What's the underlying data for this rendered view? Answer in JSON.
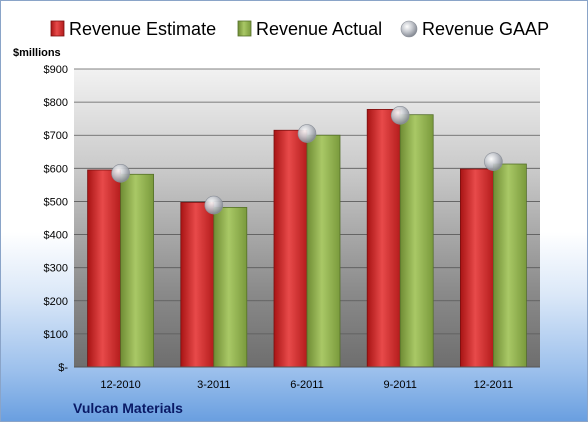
{
  "chart_data": {
    "type": "bar",
    "title": "",
    "unit_label": "$millions",
    "company": "Vulcan Materials",
    "categories": [
      "12-2010",
      "3-2011",
      "6-2011",
      "9-2011",
      "12-2011"
    ],
    "series": [
      {
        "name": "Revenue Estimate",
        "kind": "bar",
        "color": "#d42a2a",
        "values": [
          595,
          497,
          715,
          778,
          598
        ]
      },
      {
        "name": "Revenue Actual",
        "kind": "bar",
        "color": "#8fb04a",
        "values": [
          582,
          482,
          700,
          762,
          613
        ]
      },
      {
        "name": "Revenue GAAP",
        "kind": "marker",
        "color": "#b8bcc4",
        "values": [
          585,
          489,
          705,
          760,
          620
        ]
      }
    ],
    "ylim": [
      0,
      900
    ],
    "yticks": [
      0,
      100,
      200,
      300,
      400,
      500,
      600,
      700,
      800,
      900
    ],
    "ytick_labels": [
      "$-",
      "$100",
      "$200",
      "$300",
      "$400",
      "$500",
      "$600",
      "$700",
      "$800",
      "$900"
    ],
    "grid": true,
    "legend_position": "top"
  }
}
